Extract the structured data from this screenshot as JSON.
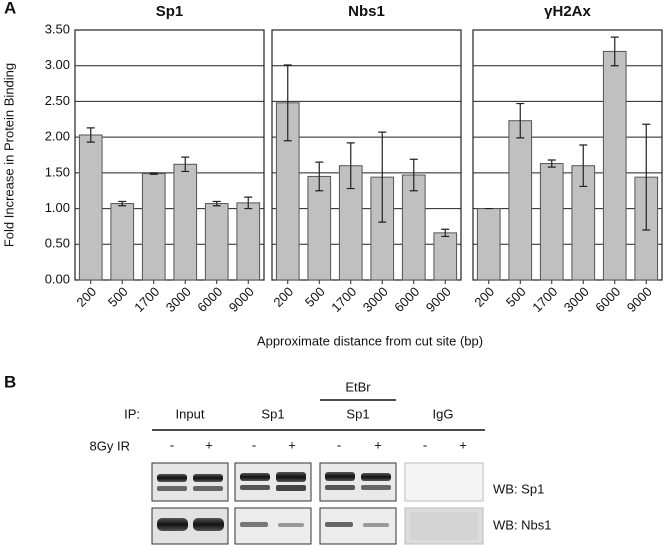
{
  "panel_a": {
    "label": "A",
    "y_label": "Fold Increase in Protein Binding",
    "x_label": "Approximate distance from cut site (bp)"
  },
  "chart_data": [
    {
      "type": "bar",
      "title": "Sp1",
      "categories": [
        "200",
        "500",
        "1700",
        "3000",
        "6000",
        "9000"
      ],
      "values": [
        2.03,
        1.07,
        1.49,
        1.62,
        1.07,
        1.08
      ],
      "errors": [
        0.1,
        0.03,
        0.01,
        0.1,
        0.03,
        0.08
      ],
      "color": "#c0c0c0",
      "ylim": [
        0,
        3.5
      ],
      "yticks": [
        {
          "value": 0,
          "label": "0.00"
        },
        {
          "value": 0.5,
          "label": "0.50"
        },
        {
          "value": 1,
          "label": "1.00"
        },
        {
          "value": 1.5,
          "label": "1.50"
        },
        {
          "value": 2,
          "label": "2.00"
        },
        {
          "value": 2.5,
          "label": "2.50"
        },
        {
          "value": 3,
          "label": "3.00"
        },
        {
          "value": 3.5,
          "label": "3.50"
        }
      ],
      "grid": true
    },
    {
      "type": "bar",
      "title": "Nbs1",
      "categories": [
        "200",
        "500",
        "1700",
        "3000",
        "6000",
        "9000"
      ],
      "values": [
        2.48,
        1.45,
        1.6,
        1.44,
        1.47,
        0.66
      ],
      "errors": [
        0.53,
        0.2,
        0.32,
        0.63,
        0.22,
        0.05
      ],
      "color": "#c0c0c0",
      "ylim": [
        0,
        3.5
      ],
      "yticks": [
        0,
        0.5,
        1,
        1.5,
        2,
        2.5,
        3,
        3.5
      ],
      "grid": true
    },
    {
      "type": "bar",
      "title": "γH2Ax",
      "categories": [
        "200",
        "500",
        "1700",
        "3000",
        "6000",
        "9000"
      ],
      "values": [
        1.0,
        2.23,
        1.63,
        1.6,
        3.2,
        1.44
      ],
      "errors": [
        0,
        0.24,
        0.05,
        0.29,
        0.2,
        0.74
      ],
      "color": "#c0c0c0",
      "ylim": [
        0,
        3.5
      ],
      "yticks": [
        0,
        0.5,
        1,
        1.5,
        2,
        2.5,
        3,
        3.5
      ],
      "grid": true
    }
  ],
  "panel_b": {
    "label": "B",
    "ip_label": "IP:",
    "treatment_label": "8Gy IR",
    "group_header": "EtBr",
    "lanes": [
      {
        "ip": "Input",
        "signs": [
          "-",
          "+"
        ]
      },
      {
        "ip": "Sp1",
        "signs": [
          "-",
          "+"
        ]
      },
      {
        "ip": "Sp1",
        "signs": [
          "-",
          "+"
        ]
      },
      {
        "ip": "IgG",
        "signs": [
          "-",
          "+"
        ]
      }
    ],
    "blots": [
      "WB: Sp1",
      "WB: Nbs1"
    ]
  }
}
